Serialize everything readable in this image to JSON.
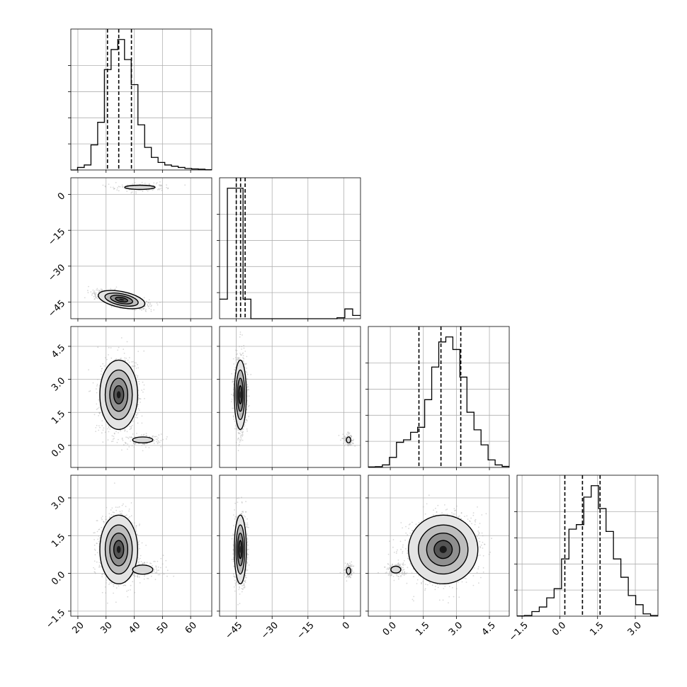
{
  "chart_data": {
    "type": "corner",
    "parameters": [
      {
        "ticks": [
          20,
          30,
          40,
          50,
          60
        ],
        "tick_labels": [
          "20",
          "30",
          "40",
          "50",
          "60"
        ],
        "range": [
          17.5,
          67.5
        ]
      },
      {
        "ticks": [
          -45,
          -30,
          -15,
          0
        ],
        "tick_labels": [
          "−45",
          "−30",
          "−15",
          "0"
        ],
        "range": [
          -52,
          7
        ]
      },
      {
        "ticks": [
          0.0,
          1.5,
          3.0,
          4.5
        ],
        "tick_labels": [
          "0.0",
          "1.5",
          "3.0",
          "4.5"
        ],
        "range": [
          -1.0,
          5.4
        ]
      },
      {
        "ticks": [
          -1.5,
          0.0,
          1.5,
          3.0
        ],
        "tick_labels": [
          "−1.5",
          "0.0",
          "1.5",
          "3.0"
        ],
        "range": [
          -1.7,
          3.9
        ]
      }
    ],
    "quantiles": [
      [
        30.5,
        34.5,
        39.0
      ],
      [
        -45.0,
        -43.2,
        -41.3
      ],
      [
        1.3,
        2.3,
        3.2
      ],
      [
        0.2,
        0.9,
        1.6
      ]
    ],
    "histograms": [
      [
        0,
        1,
        2,
        10,
        19,
        40,
        48,
        52,
        44,
        34,
        18,
        9,
        5,
        3,
        2,
        1.5,
        1,
        0.6,
        0.4,
        0.3,
        0.1
      ],
      [
        6,
        40,
        40,
        6,
        0,
        0,
        0,
        0,
        0,
        0,
        0,
        0,
        0,
        0,
        0,
        0.3,
        3,
        1
      ],
      [
        0.2,
        0.3,
        1,
        4,
        10,
        11,
        14,
        16,
        27,
        40,
        50,
        52,
        47,
        36,
        22,
        15,
        9,
        3,
        1,
        0.4
      ],
      [
        0.1,
        0.3,
        2,
        4,
        8,
        12,
        25,
        38,
        40,
        52,
        57,
        47,
        37,
        25,
        17,
        9,
        5,
        1,
        0.3
      ]
    ],
    "modes": {
      "1_0": [
        {
          "cx": 35.5,
          "cy": -44.0,
          "sx": 4.0,
          "sy": 1.6,
          "rho": -0.6,
          "w": 0.92
        },
        {
          "cx": 42.0,
          "cy": 3.0,
          "sx": 6.0,
          "sy": 1.0,
          "rho": 0,
          "w": 0.08
        }
      ],
      "2_0": [
        {
          "cx": 34.5,
          "cy": 2.3,
          "sx": 3.2,
          "sy": 0.75,
          "rho": 0,
          "w": 0.92
        },
        {
          "cx": 43.0,
          "cy": 0.25,
          "sx": 4.0,
          "sy": 0.15,
          "rho": 0,
          "w": 0.08
        }
      ],
      "2_1": [
        {
          "cx": -43.3,
          "cy": 2.3,
          "sx": 1.2,
          "sy": 0.75,
          "rho": 0,
          "w": 0.92
        },
        {
          "cx": 2.0,
          "cy": 0.25,
          "sx": 1.0,
          "sy": 0.15,
          "rho": 0,
          "w": 0.08
        }
      ],
      "3_0": [
        {
          "cx": 34.5,
          "cy": 0.95,
          "sx": 3.2,
          "sy": 0.65,
          "rho": 0,
          "w": 0.92
        },
        {
          "cx": 43.0,
          "cy": 0.15,
          "sx": 4.0,
          "sy": 0.2,
          "rho": 0,
          "w": 0.08
        }
      ],
      "3_1": [
        {
          "cx": -43.3,
          "cy": 0.95,
          "sx": 1.2,
          "sy": 0.65,
          "rho": 0,
          "w": 0.92
        },
        {
          "cx": 2.0,
          "cy": 0.1,
          "sx": 1.0,
          "sy": 0.15,
          "rho": 0,
          "w": 0.08
        }
      ],
      "3_2": [
        {
          "cx": 2.4,
          "cy": 0.95,
          "sx": 0.75,
          "sy": 0.65,
          "rho": 0.1,
          "w": 0.92
        },
        {
          "cx": 0.25,
          "cy": 0.15,
          "sx": 0.25,
          "sy": 0.15,
          "rho": 0,
          "w": 0.08
        }
      ]
    }
  }
}
